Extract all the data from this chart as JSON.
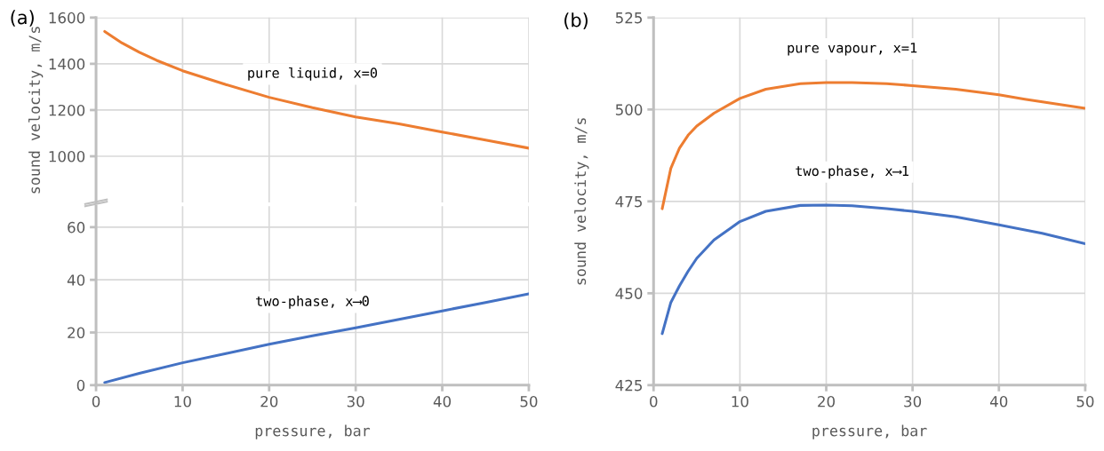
{
  "chart_data": [
    {
      "type": "line",
      "title": "(a)",
      "ylabel": "sound velocity, m/s",
      "xlim": [
        0,
        50
      ],
      "xticks": [
        0,
        10,
        20,
        30,
        40,
        50
      ],
      "ylim": [
        800,
        1600
      ],
      "yticks": [
        1000,
        1200,
        1400,
        1600
      ],
      "grid": true,
      "tick_labels": "y",
      "series": [
        {
          "name": "pure liquid, x=0",
          "color": "#ed7d31",
          "x": [
            1,
            3,
            5,
            7,
            10,
            15,
            20,
            25,
            30,
            35,
            40,
            45,
            50
          ],
          "values": [
            1540,
            1490,
            1450,
            1415,
            1370,
            1310,
            1255,
            1210,
            1170,
            1140,
            1105,
            1070,
            1035
          ]
        }
      ]
    },
    {
      "type": "line",
      "xlabel": "pressure, bar",
      "xlim": [
        0,
        50
      ],
      "xticks": [
        0,
        10,
        20,
        30,
        40,
        50
      ],
      "ylim": [
        0,
        68
      ],
      "yticks": [
        0,
        20,
        40,
        60
      ],
      "grid": true,
      "series": [
        {
          "name": "two-phase, x⟶0",
          "color": "#4472c4",
          "x": [
            1,
            5,
            10,
            15,
            20,
            25,
            30,
            35,
            40,
            45,
            50
          ],
          "values": [
            1,
            4.5,
            8.5,
            12,
            15.5,
            18.7,
            21.8,
            25,
            28.2,
            31.4,
            34.7
          ]
        }
      ]
    },
    {
      "type": "line",
      "title": "(b)",
      "xlabel": "pressure, bar",
      "ylabel": "sound velocity, m/s",
      "xlim": [
        0,
        50
      ],
      "xticks": [
        0,
        10,
        20,
        30,
        40,
        50
      ],
      "ylim": [
        425,
        525
      ],
      "yticks": [
        425,
        450,
        475,
        500,
        525
      ],
      "grid": true,
      "series": [
        {
          "name": "pure vapour, x=1",
          "color": "#ed7d31",
          "x": [
            1,
            2,
            3,
            4,
            5,
            7,
            10,
            13,
            17,
            20,
            23,
            27,
            30,
            35,
            40,
            43,
            50
          ],
          "values": [
            473,
            484,
            489.5,
            493,
            495.5,
            499,
            503,
            505.5,
            507,
            507.3,
            507.3,
            507,
            506.5,
            505.5,
            504,
            502.8,
            500.3
          ]
        },
        {
          "name": "two-phase, x⟶1",
          "color": "#4472c4",
          "x": [
            1,
            2,
            3,
            4,
            5,
            7,
            10,
            13,
            17,
            20,
            23,
            27,
            30,
            35,
            40,
            45,
            50
          ],
          "values": [
            439,
            447.5,
            452,
            456,
            459.5,
            464.5,
            469.5,
            472.3,
            473.9,
            474,
            473.8,
            473,
            472.3,
            470.8,
            468.6,
            466.3,
            463.5
          ]
        }
      ]
    }
  ]
}
